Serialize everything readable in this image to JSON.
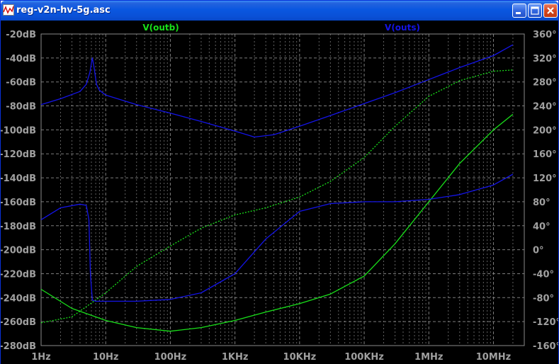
{
  "window": {
    "title": "reg-v2n-hv-5g.asc"
  },
  "icons": {
    "app": "waveform-icon",
    "minimize": "minimize-icon",
    "maximize": "maximize-icon",
    "close": "close-icon"
  },
  "colors": {
    "background": "#000000",
    "grid": "#8a8a8a",
    "axis_text": "#a0a0a0",
    "series_green": "#19e01a",
    "series_blue": "#1414e6"
  },
  "chart_data": {
    "type": "line",
    "x_scale": "log",
    "grid": true,
    "x_ticks": [
      "1Hz",
      "10Hz",
      "100Hz",
      "1KHz",
      "10KHz",
      "100KHz",
      "1MHz",
      "10MHz"
    ],
    "x_tick_values": [
      1,
      10,
      100,
      1000,
      10000,
      100000,
      1000000,
      10000000
    ],
    "y_left_ticks": [
      "-20dB",
      "-40dB",
      "-60dB",
      "-80dB",
      "-100dB",
      "-120dB",
      "-140dB",
      "-160dB",
      "-180dB",
      "-200dB",
      "-220dB",
      "-240dB",
      "-260dB",
      "-280dB"
    ],
    "y_left_range": [
      -280,
      -20
    ],
    "y_right_ticks": [
      "360°",
      "320°",
      "280°",
      "240°",
      "200°",
      "160°",
      "120°",
      "80°",
      "40°",
      "0°",
      "-40°",
      "-80°",
      "-120°",
      "-160°"
    ],
    "y_right_range": [
      -160,
      360
    ],
    "xlim": [
      1,
      30000000
    ],
    "legend": [
      "V(outb)",
      "V(outs)"
    ],
    "series": [
      {
        "name": "V(outb)",
        "color": "#19e01a",
        "kind": "magnitude",
        "axis": "dB",
        "x": [
          1,
          3,
          10,
          30,
          100,
          300,
          1000,
          3000,
          10000,
          30000,
          100000,
          300000,
          1000000,
          3000000,
          10000000,
          20000000
        ],
        "y": [
          -233,
          -249,
          -259,
          -265,
          -268,
          -265,
          -259,
          -252,
          -245,
          -237,
          -222,
          -195,
          -160,
          -128,
          -100,
          -87
        ]
      },
      {
        "name": "V(outb)",
        "color": "#19e01a",
        "kind": "phase",
        "axis": "deg",
        "dashed": true,
        "x": [
          1,
          3,
          10,
          30,
          100,
          300,
          1000,
          3000,
          10000,
          30000,
          100000,
          300000,
          1000000,
          3000000,
          10000000,
          20000000
        ],
        "y": [
          -122,
          -112,
          -72,
          -28,
          6,
          36,
          58,
          70,
          88,
          114,
          154,
          206,
          256,
          282,
          298,
          300
        ]
      },
      {
        "name": "V(outs)",
        "color": "#1414e6",
        "kind": "magnitude",
        "axis": "dB",
        "x": [
          1,
          2,
          4,
          5,
          5.7,
          6.2,
          6.6,
          7.2,
          8,
          10,
          30,
          100,
          300,
          1000,
          2000,
          4000,
          10000,
          30000,
          100000,
          300000,
          1000000,
          3000000,
          10000000,
          20000000
        ],
        "y": [
          -79,
          -74,
          -68,
          -62,
          -52,
          -40,
          -48,
          -62,
          -67,
          -71,
          -79,
          -86,
          -93,
          -101,
          -106,
          -104,
          -97,
          -88,
          -78,
          -69,
          -58,
          -48,
          -38,
          -29
        ]
      },
      {
        "name": "V(outs)",
        "color": "#1414e6",
        "kind": "phase",
        "axis": "deg",
        "x": [
          1,
          2,
          4,
          5,
          5.5,
          5.8,
          6.2,
          7,
          10,
          30,
          100,
          300,
          1000,
          3000,
          10000,
          30000,
          100000,
          300000,
          1000000,
          3000000,
          10000000,
          20000000
        ],
        "y": [
          50,
          70,
          76,
          74,
          50,
          -40,
          -84,
          -86,
          -86,
          -86,
          -83,
          -72,
          -40,
          18,
          64,
          77,
          80,
          80,
          84,
          92,
          108,
          126
        ]
      }
    ]
  }
}
